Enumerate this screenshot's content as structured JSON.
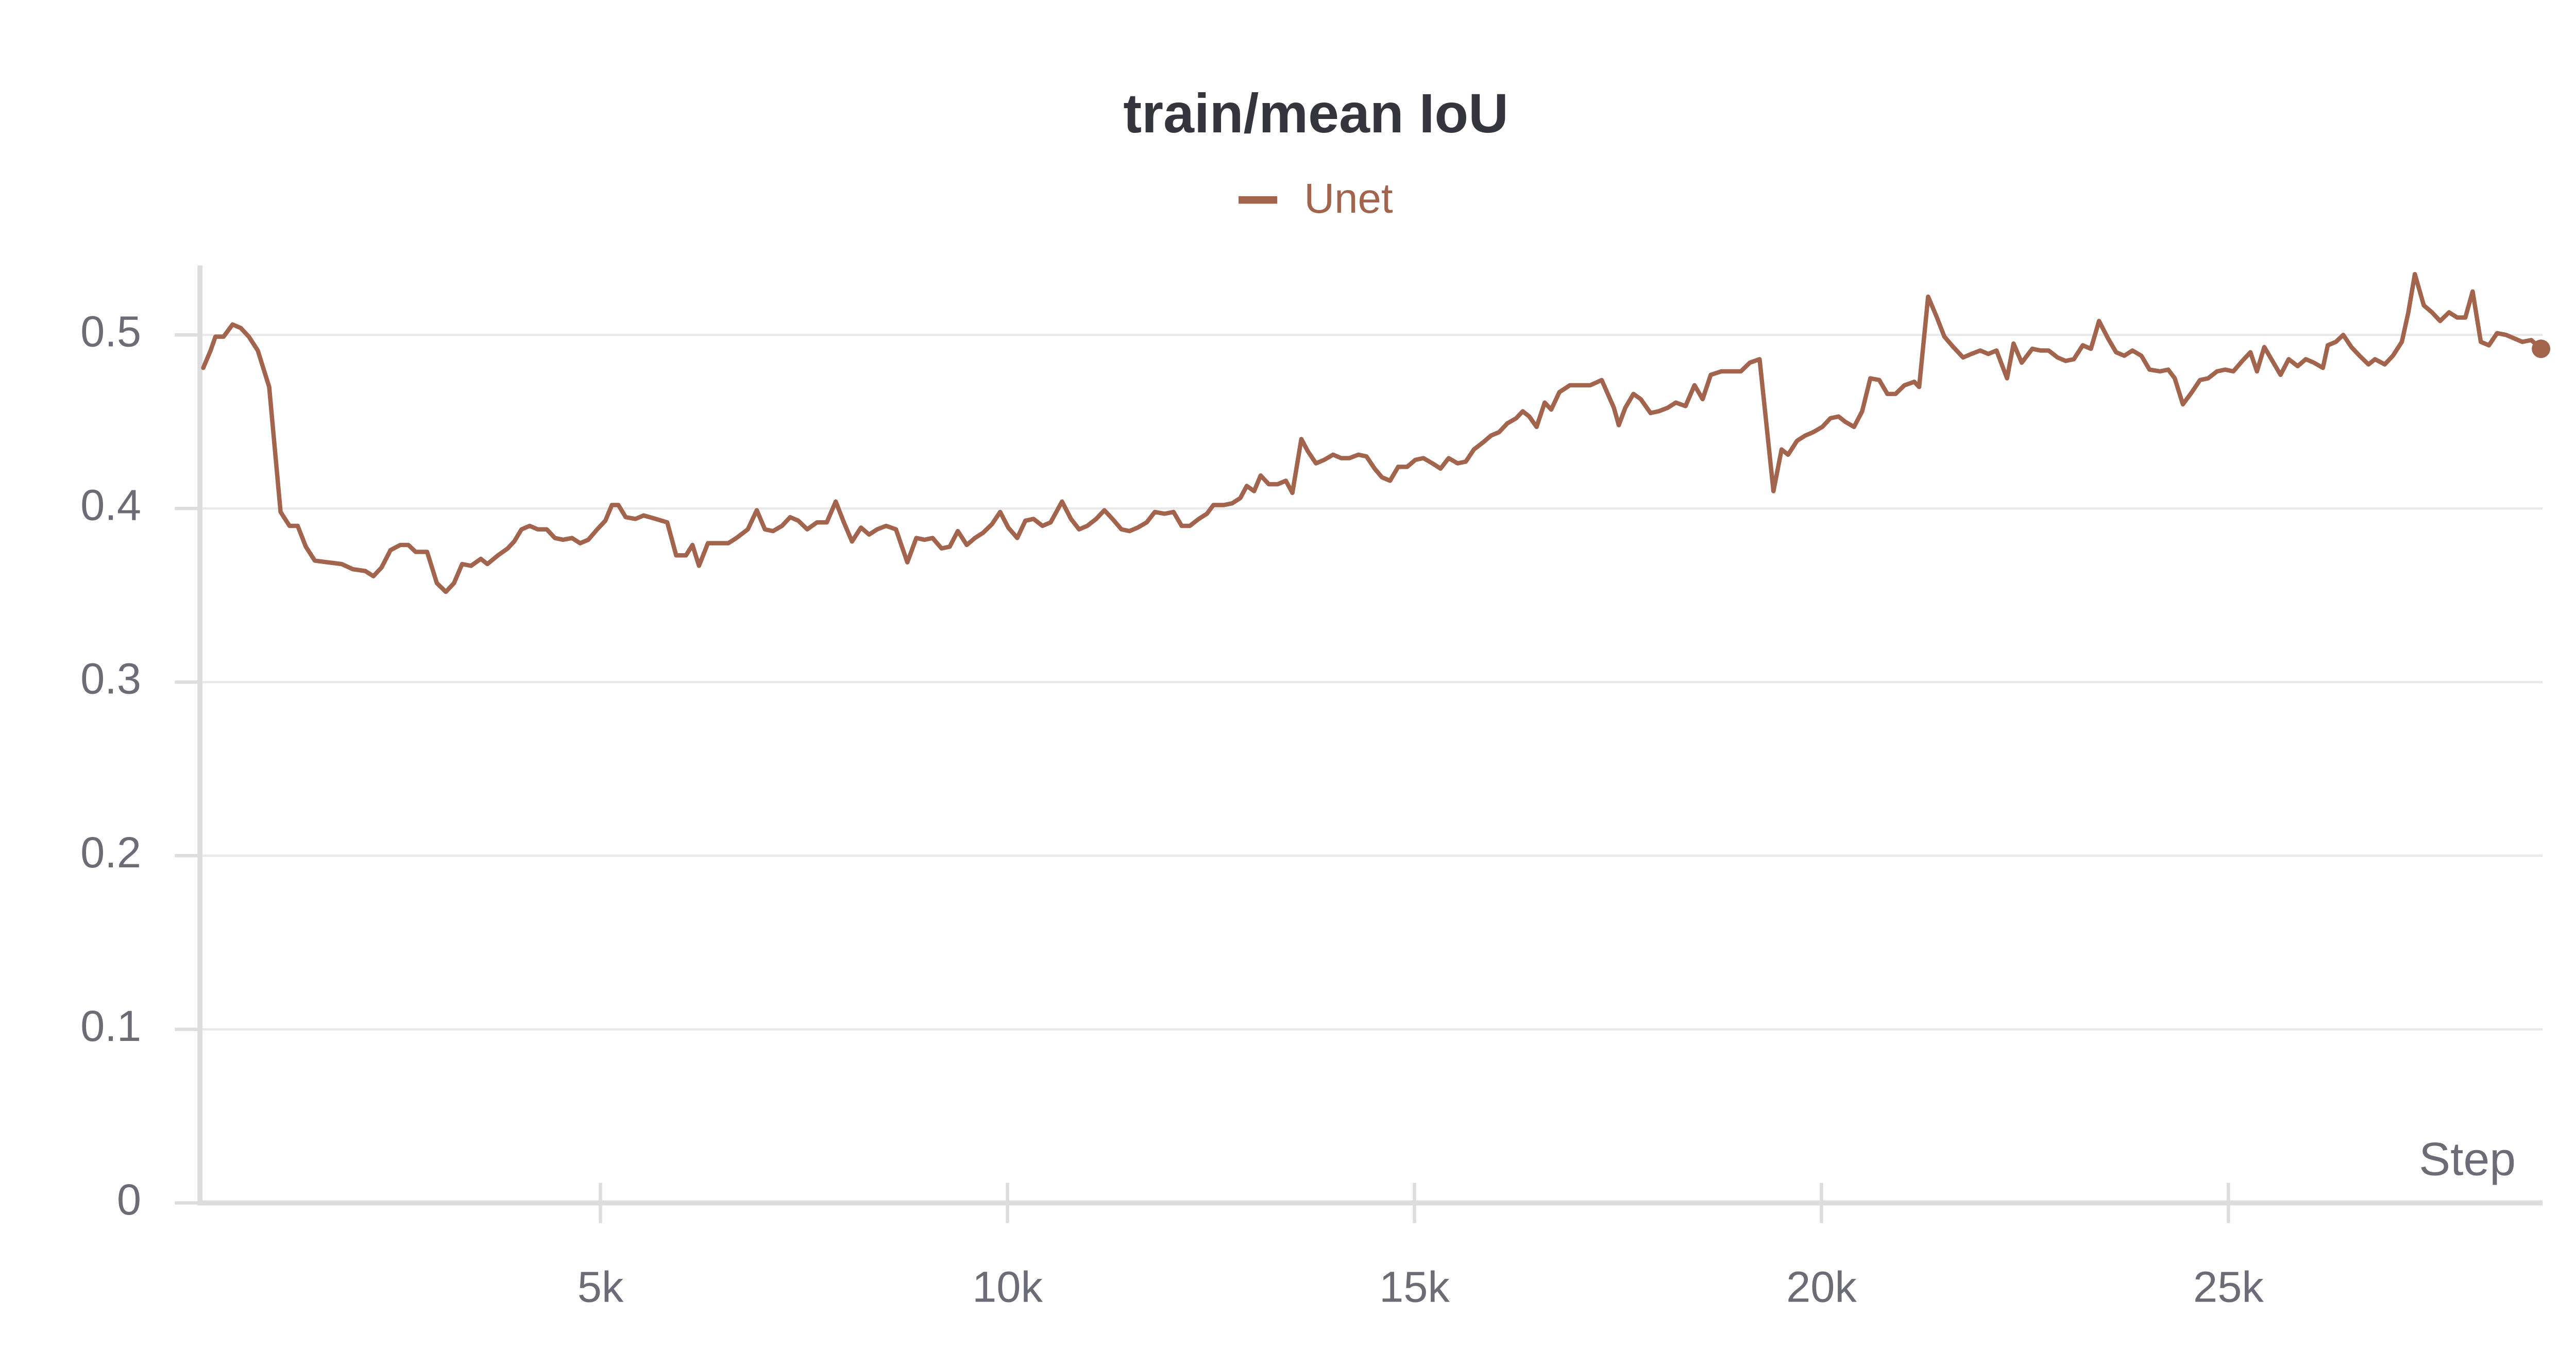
{
  "chart_data": {
    "type": "line",
    "title": "train/mean IoU",
    "x_label": "Step",
    "grid": true,
    "legend_position": "top",
    "xlim": [
      80,
      28860
    ],
    "ylim": [
      0,
      0.54
    ],
    "xticks": [
      {
        "value": 5000,
        "label": "5k"
      },
      {
        "value": 10000,
        "label": "10k"
      },
      {
        "value": 15000,
        "label": "15k"
      },
      {
        "value": 20000,
        "label": "20k"
      },
      {
        "value": 25000,
        "label": "25k"
      }
    ],
    "yticks": [
      0,
      0.1,
      0.2,
      0.3,
      0.4,
      0.5
    ],
    "x": [
      120,
      210,
      270,
      370,
      480,
      580,
      680,
      790,
      930,
      1070,
      1180,
      1280,
      1380,
      1490,
      1650,
      1820,
      1960,
      2110,
      2210,
      2310,
      2420,
      2540,
      2640,
      2730,
      2870,
      2990,
      3100,
      3200,
      3300,
      3410,
      3530,
      3610,
      3740,
      3860,
      3940,
      4030,
      4130,
      4230,
      4340,
      4440,
      4540,
      4650,
      4750,
      4850,
      4960,
      5060,
      5140,
      5220,
      5310,
      5430,
      5530,
      5680,
      5820,
      5930,
      6050,
      6130,
      6210,
      6320,
      6460,
      6570,
      6670,
      6810,
      6920,
      7020,
      7120,
      7230,
      7330,
      7430,
      7540,
      7660,
      7780,
      7890,
      7990,
      8090,
      8200,
      8300,
      8400,
      8510,
      8630,
      8770,
      8880,
      8980,
      9080,
      9190,
      9290,
      9390,
      9500,
      9600,
      9700,
      9810,
      9910,
      10010,
      10120,
      10220,
      10320,
      10430,
      10530,
      10670,
      10780,
      10880,
      10980,
      11090,
      11190,
      11290,
      11400,
      11500,
      11600,
      11710,
      11810,
      11930,
      12040,
      12140,
      12240,
      12350,
      12450,
      12530,
      12660,
      12760,
      12860,
      12940,
      13030,
      13110,
      13210,
      13320,
      13420,
      13500,
      13610,
      13690,
      13790,
      13890,
      14000,
      14100,
      14200,
      14310,
      14410,
      14510,
      14600,
      14700,
      14800,
      14910,
      15010,
      15110,
      15220,
      15320,
      15420,
      15530,
      15630,
      15730,
      15840,
      15940,
      16040,
      16140,
      16250,
      16330,
      16410,
      16500,
      16600,
      16680,
      16780,
      16910,
      17030,
      17160,
      17300,
      17450,
      17510,
      17590,
      17690,
      17780,
      17900,
      18000,
      18110,
      18210,
      18330,
      18440,
      18540,
      18640,
      18770,
      18890,
      19010,
      19120,
      19240,
      19410,
      19510,
      19590,
      19700,
      19800,
      19900,
      20010,
      20110,
      20210,
      20290,
      20400,
      20500,
      20600,
      20710,
      20810,
      20910,
      21020,
      21140,
      21200,
      21310,
      21410,
      21510,
      21620,
      21740,
      21840,
      21950,
      22050,
      22150,
      22280,
      22360,
      22460,
      22590,
      22690,
      22790,
      22900,
      23000,
      23100,
      23210,
      23310,
      23410,
      23520,
      23620,
      23720,
      23820,
      23930,
      24030,
      24160,
      24260,
      24340,
      24440,
      24550,
      24650,
      24750,
      24860,
      24960,
      25060,
      25170,
      25270,
      25350,
      25440,
      25540,
      25640,
      25740,
      25850,
      25950,
      26050,
      26160,
      26220,
      26320,
      26410,
      26510,
      26610,
      26720,
      26800,
      26920,
      27020,
      27130,
      27210,
      27290,
      27400,
      27500,
      27600,
      27710,
      27810,
      27910,
      28000,
      28100,
      28200,
      28300,
      28410,
      28510,
      28610,
      28720,
      28840
    ],
    "series": [
      {
        "name": "Unet",
        "color": "#a3644d",
        "values": [
          0.481,
          0.491,
          0.499,
          0.499,
          0.506,
          0.504,
          0.499,
          0.491,
          0.47,
          0.398,
          0.39,
          0.39,
          0.378,
          0.37,
          0.369,
          0.368,
          0.365,
          0.364,
          0.361,
          0.366,
          0.376,
          0.379,
          0.379,
          0.375,
          0.375,
          0.357,
          0.352,
          0.357,
          0.368,
          0.367,
          0.371,
          0.368,
          0.373,
          0.377,
          0.381,
          0.388,
          0.39,
          0.388,
          0.388,
          0.383,
          0.382,
          0.383,
          0.38,
          0.382,
          0.388,
          0.393,
          0.402,
          0.402,
          0.395,
          0.394,
          0.396,
          0.394,
          0.392,
          0.373,
          0.373,
          0.379,
          0.367,
          0.38,
          0.38,
          0.38,
          0.383,
          0.388,
          0.399,
          0.388,
          0.387,
          0.39,
          0.395,
          0.393,
          0.388,
          0.392,
          0.392,
          0.404,
          0.392,
          0.381,
          0.389,
          0.385,
          0.388,
          0.39,
          0.388,
          0.369,
          0.383,
          0.382,
          0.383,
          0.377,
          0.378,
          0.387,
          0.379,
          0.383,
          0.386,
          0.391,
          0.398,
          0.389,
          0.383,
          0.393,
          0.394,
          0.39,
          0.392,
          0.404,
          0.394,
          0.388,
          0.39,
          0.394,
          0.399,
          0.394,
          0.388,
          0.387,
          0.389,
          0.392,
          0.398,
          0.397,
          0.398,
          0.39,
          0.39,
          0.394,
          0.397,
          0.402,
          0.402,
          0.403,
          0.406,
          0.413,
          0.41,
          0.419,
          0.414,
          0.414,
          0.416,
          0.409,
          0.44,
          0.433,
          0.426,
          0.428,
          0.431,
          0.429,
          0.429,
          0.431,
          0.43,
          0.423,
          0.418,
          0.416,
          0.424,
          0.424,
          0.428,
          0.429,
          0.426,
          0.423,
          0.429,
          0.426,
          0.427,
          0.434,
          0.438,
          0.442,
          0.444,
          0.449,
          0.452,
          0.456,
          0.453,
          0.447,
          0.461,
          0.457,
          0.467,
          0.471,
          0.471,
          0.471,
          0.474,
          0.458,
          0.448,
          0.458,
          0.466,
          0.463,
          0.455,
          0.456,
          0.458,
          0.461,
          0.459,
          0.471,
          0.463,
          0.477,
          0.479,
          0.479,
          0.479,
          0.484,
          0.486,
          0.41,
          0.434,
          0.431,
          0.439,
          0.442,
          0.444,
          0.447,
          0.452,
          0.453,
          0.45,
          0.447,
          0.456,
          0.475,
          0.474,
          0.466,
          0.466,
          0.471,
          0.473,
          0.47,
          0.522,
          0.511,
          0.499,
          0.493,
          0.487,
          0.489,
          0.491,
          0.489,
          0.491,
          0.475,
          0.495,
          0.484,
          0.492,
          0.491,
          0.491,
          0.487,
          0.485,
          0.486,
          0.494,
          0.492,
          0.508,
          0.498,
          0.49,
          0.488,
          0.491,
          0.488,
          0.48,
          0.479,
          0.48,
          0.475,
          0.46,
          0.467,
          0.474,
          0.475,
          0.479,
          0.48,
          0.479,
          0.485,
          0.49,
          0.479,
          0.493,
          0.485,
          0.477,
          0.486,
          0.482,
          0.486,
          0.484,
          0.481,
          0.494,
          0.496,
          0.5,
          0.493,
          0.488,
          0.483,
          0.486,
          0.483,
          0.488,
          0.496,
          0.513,
          0.535,
          0.517,
          0.513,
          0.508,
          0.513,
          0.51,
          0.51,
          0.525,
          0.496,
          0.494,
          0.501,
          0.5,
          0.498,
          0.496,
          0.497,
          0.492
        ]
      }
    ]
  }
}
